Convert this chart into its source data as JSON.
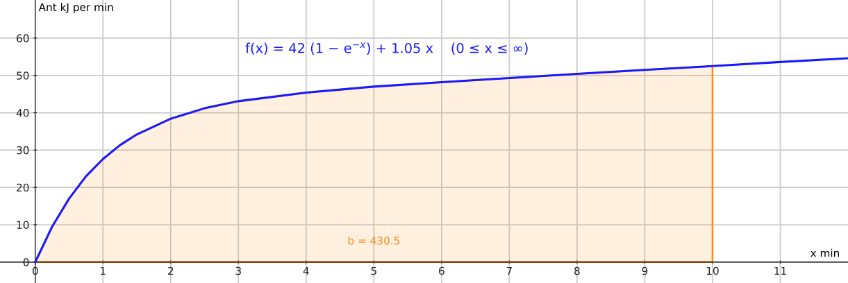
{
  "chart_data": {
    "type": "line",
    "xlabel": "x min",
    "ylabel": "Ant kJ per min",
    "annotations": [
      "f(x) = 42 (1 − e$^{−x}$) + 1.05 x    (0 ≤ x ≤ ∞)",
      "b = 430.5"
    ],
    "series": [
      {
        "color": "#1a1aff",
        "x": [
          0,
          0.25,
          0.5,
          0.75,
          1,
          1.25,
          1.5,
          2,
          2.5,
          3,
          4,
          5,
          6,
          7,
          8,
          9,
          10,
          11,
          12
        ],
        "values": [
          0,
          9.5,
          17,
          23,
          27.6,
          31.3,
          34.2,
          38.4,
          41.2,
          43.1,
          45.4,
          47,
          48.2,
          49.3,
          50.4,
          51.5,
          52.5,
          53.6,
          54.6
        ]
      },
      {
        "type": "area",
        "color": "#ff8c1a",
        "x": [
          0,
          0.25,
          0.5,
          0.75,
          1,
          1.25,
          1.5,
          2,
          2.5,
          3,
          4,
          5,
          6,
          7,
          8,
          9,
          10
        ],
        "values": [
          0,
          9.5,
          17,
          23,
          27.6,
          31.3,
          34.2,
          38.4,
          41.2,
          43.1,
          45.4,
          47,
          48.2,
          49.3,
          50.4,
          51.5,
          52.5
        ]
      }
    ],
    "xlim": [
      -0.52,
      12
    ],
    "ylim": [
      -5.6,
      70.2
    ],
    "xticks": [
      0,
      1,
      2,
      3,
      4,
      5,
      6,
      7,
      8,
      9,
      10,
      11
    ],
    "yticks": [
      0,
      10,
      20,
      30,
      40,
      50,
      60
    ],
    "grid": true,
    "legend": false
  }
}
